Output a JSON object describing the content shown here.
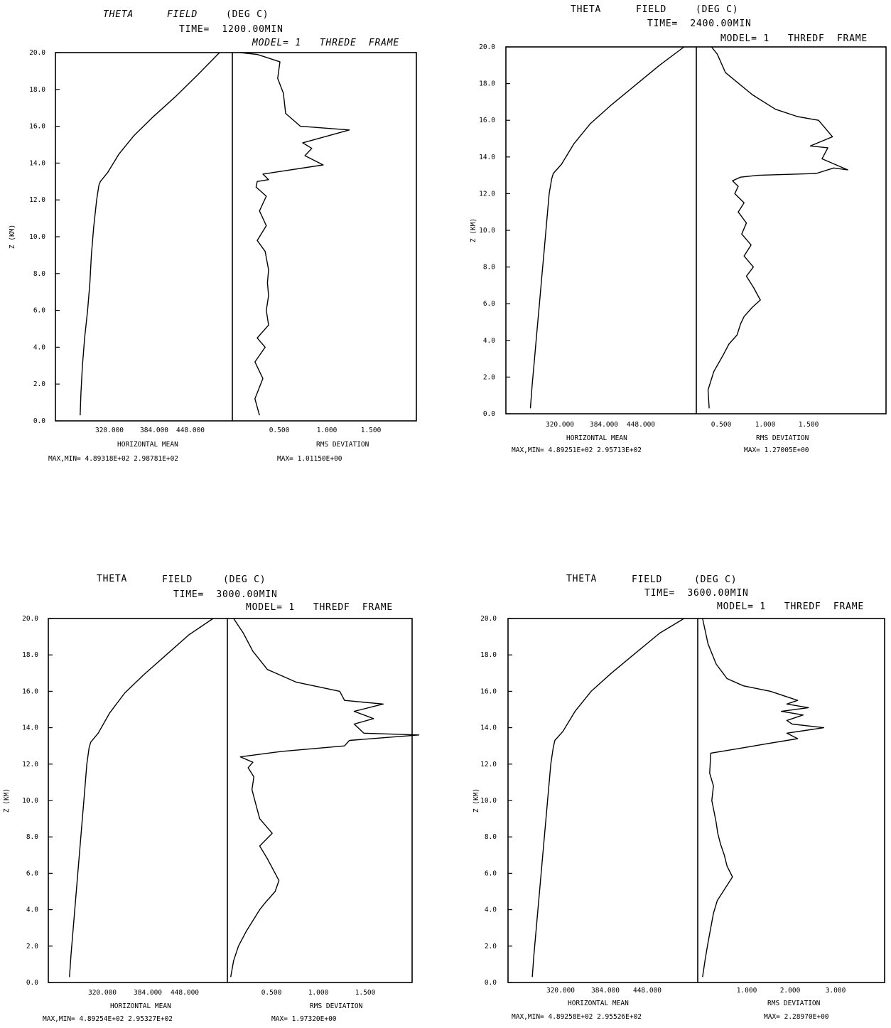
{
  "chart_data": [
    {
      "type": "line",
      "title": {
        "field": "THETA",
        "field_word": "FIELD",
        "unit": "(DEG C)"
      },
      "time_text": "TIME=  1200.00MIN",
      "model_text": "MODEL= 1   THREDE  FRAME",
      "ylabel": "Z (KM)",
      "ylim": [
        0,
        20
      ],
      "yticks": [
        "0.0",
        "2.0",
        "4.0",
        "6.0",
        "8.0",
        "10.0",
        "12.0",
        "14.0",
        "16.0",
        "18.0",
        "20.0"
      ],
      "mean_xticks": [
        "320.000",
        "384.000",
        "448.000"
      ],
      "mean_xlabel": "HORIZONTAL MEAN",
      "mean_stats": "MAX,MIN=  4.89318E+02  2.98781E+02",
      "rms_xticks": [
        "0.500",
        "1.000",
        "1.500"
      ],
      "rms_xlabel": "RMS DEVIATION",
      "rms_stats": "MAX=  1.01150E+00",
      "series": [
        {
          "panel": "mean",
          "xlim": [
            270,
            490
          ],
          "x": [
            303,
            304,
            306,
            309,
            313,
            316,
            318,
            321,
            325,
            328,
            330,
            340,
            355,
            375,
            400,
            430,
            460,
            489
          ],
          "y": [
            0.3,
            1.5,
            3,
            4.5,
            6,
            7.5,
            9,
            10.5,
            12,
            12.8,
            13.0,
            13.5,
            14.5,
            15.5,
            16.5,
            17.6,
            18.8,
            20
          ]
        },
        {
          "panel": "rms",
          "xlim": [
            0,
            1.6
          ],
          "x": [
            0.22,
            0.18,
            0.25,
            0.18,
            0.27,
            0.2,
            0.3,
            0.28,
            0.3,
            0.29,
            0.3,
            0.27,
            0.2,
            0.28,
            0.22,
            0.28,
            0.19,
            0.2,
            0.3,
            0.25,
            0.78,
            0.62,
            0.68,
            0.6,
            1.01,
            0.58,
            0.45,
            0.43,
            0.38,
            0.4,
            0.2,
            0.05
          ],
          "y": [
            0.3,
            1.2,
            2.3,
            3.2,
            4.0,
            4.5,
            5.2,
            6.0,
            6.8,
            7.5,
            8.2,
            9.2,
            9.8,
            10.6,
            11.4,
            12.2,
            12.7,
            13.0,
            13.1,
            13.4,
            13.9,
            14.4,
            14.8,
            15.1,
            15.8,
            16.0,
            16.7,
            17.8,
            18.6,
            19.5,
            19.9,
            20
          ]
        }
      ]
    },
    {
      "type": "line",
      "title": {
        "field": "THETA",
        "field_word": "FIELD",
        "unit": "(DEG C)"
      },
      "time_text": "TIME=  2400.00MIN",
      "model_text": "MODEL= 1   THREDF  FRAME",
      "ylabel": "Z (KM)",
      "ylim": [
        0,
        20
      ],
      "yticks": [
        "0.0",
        "2.0",
        "4.0",
        "6.0",
        "8.0",
        "10.0",
        "12.0",
        "14.0",
        "16.0",
        "18.0",
        "20.0"
      ],
      "mean_xticks": [
        "320.000",
        "384.000",
        "448.000"
      ],
      "mean_xlabel": "HORIZONTAL MEAN",
      "mean_stats": "MAX,MIN=  4.89251E+02  2.95713E+02",
      "rms_xticks": [
        "0.500",
        "1.000",
        "1.500"
      ],
      "rms_xlabel": "RMS DEVIATION",
      "rms_stats": "MAX=  1.27005E+00",
      "series": [
        {
          "panel": "mean",
          "xlim": [
            270,
            490
          ],
          "x": [
            300,
            302,
            305,
            308,
            311,
            314,
            317,
            320,
            323,
            326,
            328,
            338,
            353,
            373,
            398,
            428,
            458,
            488
          ],
          "y": [
            0.3,
            1.5,
            3,
            4.5,
            6,
            7.5,
            9,
            10.5,
            12,
            12.8,
            13.1,
            13.6,
            14.7,
            15.8,
            16.8,
            17.9,
            19.0,
            20
          ]
        },
        {
          "panel": "rms",
          "xlim": [
            0,
            1.6
          ],
          "x": [
            0.08,
            0.07,
            0.12,
            0.2,
            0.25,
            0.32,
            0.35,
            0.38,
            0.45,
            0.52,
            0.46,
            0.4,
            0.46,
            0.38,
            0.44,
            0.36,
            0.4,
            0.33,
            0.38,
            0.3,
            0.33,
            0.28,
            0.35,
            0.5,
            1.0,
            1.15,
            1.27,
            1.05,
            1.1,
            0.95,
            1.14,
            1.02,
            0.84,
            0.65,
            0.45,
            0.22,
            0.15,
            0.1
          ],
          "y": [
            0.3,
            1.3,
            2.3,
            3.2,
            3.8,
            4.3,
            4.9,
            5.3,
            5.8,
            6.2,
            6.9,
            7.5,
            8.0,
            8.6,
            9.2,
            9.8,
            10.4,
            11.0,
            11.5,
            12.0,
            12.4,
            12.7,
            12.9,
            13.0,
            13.1,
            13.4,
            13.3,
            13.9,
            14.5,
            14.6,
            15.1,
            16.0,
            16.2,
            16.6,
            17.4,
            18.6,
            19.6,
            20
          ]
        }
      ]
    },
    {
      "type": "line",
      "title": {
        "field": "THETA",
        "field_word": "FIELD",
        "unit": "(DEG C)"
      },
      "time_text": "TIME=  3000.00MIN",
      "model_text": "MODEL= 1   THREDF  FRAME",
      "ylabel": "Z (KM)",
      "ylim": [
        0,
        20
      ],
      "yticks": [
        "0.0",
        "2.0",
        "4.0",
        "6.0",
        "8.0",
        "10.0",
        "12.0",
        "14.0",
        "16.0",
        "18.0",
        "20.0"
      ],
      "mean_xticks": [
        "320.000",
        "384.000",
        "448.000"
      ],
      "mean_xlabel": "HORIZONTAL MEAN",
      "mean_stats": "MAX,MIN=  4.89254E+02  2.95327E+02",
      "rms_xticks": [
        "0.500",
        "1.000",
        "1.500"
      ],
      "rms_xlabel": "RMS DEVIATION",
      "rms_stats": "MAX=  1.97320E+00",
      "series": [
        {
          "panel": "mean",
          "xlim": [
            270,
            490
          ],
          "x": [
            298,
            300,
            303,
            306,
            309,
            312,
            315,
            318,
            321,
            324,
            326,
            336,
            351,
            371,
            396,
            426,
            456,
            488
          ],
          "y": [
            0.3,
            1.5,
            3,
            4.5,
            6,
            7.5,
            9,
            10.5,
            12,
            12.9,
            13.2,
            13.7,
            14.8,
            15.9,
            16.9,
            18.0,
            19.1,
            20
          ]
        },
        {
          "panel": "rms",
          "xlim": [
            0,
            1.9
          ],
          "x": [
            0.02,
            0.05,
            0.1,
            0.18,
            0.25,
            0.32,
            0.38,
            0.48,
            0.52,
            0.45,
            0.4,
            0.32,
            0.45,
            0.32,
            0.28,
            0.24,
            0.26,
            0.2,
            0.25,
            0.12,
            0.55,
            1.2,
            1.25,
            1.97,
            1.4,
            1.3,
            1.5,
            1.3,
            1.6,
            1.2,
            1.15,
            0.7,
            0.4,
            0.25,
            0.15,
            0.05
          ],
          "y": [
            0.3,
            1.2,
            2.0,
            2.8,
            3.4,
            4.0,
            4.4,
            5.0,
            5.6,
            6.3,
            6.8,
            7.5,
            8.2,
            9.0,
            9.8,
            10.6,
            11.3,
            11.8,
            12.1,
            12.4,
            12.7,
            13.0,
            13.3,
            13.6,
            13.7,
            14.2,
            14.5,
            14.9,
            15.3,
            15.5,
            16.0,
            16.5,
            17.2,
            18.2,
            19.2,
            20
          ]
        }
      ]
    },
    {
      "type": "line",
      "title": {
        "field": "THETA",
        "field_word": "FIELD",
        "unit": "(DEG C)"
      },
      "time_text": "TIME=  3600.00MIN",
      "model_text": "MODEL= 1   THREDF  FRAME",
      "ylabel": "Z (KM)",
      "ylim": [
        0,
        20
      ],
      "yticks": [
        "0.0",
        "2.0",
        "4.0",
        "6.0",
        "8.0",
        "10.0",
        "12.0",
        "14.0",
        "16.0",
        "18.0",
        "20.0"
      ],
      "mean_xticks": [
        "320.000",
        "384.000",
        "448.000"
      ],
      "mean_xlabel": "HORIZONTAL MEAN",
      "mean_stats": "MAX,MIN=  4.89258E+02  2.95526E+02",
      "rms_xticks": [
        "1.000",
        "2.000",
        "3.000"
      ],
      "rms_xlabel": "RMS DEVIATION",
      "rms_stats": "MAX=  2.28970E+00",
      "series": [
        {
          "panel": "mean",
          "xlim": [
            270,
            490
          ],
          "x": [
            300,
            302,
            305,
            308,
            311,
            314,
            317,
            320,
            323,
            326,
            328,
            338,
            353,
            373,
            398,
            428,
            458,
            488
          ],
          "y": [
            0.3,
            1.5,
            3,
            4.5,
            6,
            7.5,
            9,
            10.5,
            12,
            12.9,
            13.3,
            13.8,
            14.9,
            16.0,
            17.0,
            18.1,
            19.2,
            20
          ]
        },
        {
          "panel": "rms",
          "xlim": [
            0,
            3.4
          ],
          "x": [
            0.05,
            0.1,
            0.15,
            0.2,
            0.25,
            0.32,
            0.45,
            0.6,
            0.5,
            0.45,
            0.38,
            0.33,
            0.3,
            0.26,
            0.22,
            0.25,
            0.18,
            0.2,
            0.8,
            1.2,
            1.8,
            1.6,
            2.28,
            1.7,
            1.6,
            1.9,
            1.5,
            2.0,
            1.6,
            1.8,
            1.3,
            0.8,
            0.5,
            0.3,
            0.15,
            0.05
          ],
          "y": [
            0.3,
            1.3,
            2.2,
            3.0,
            3.8,
            4.5,
            5.1,
            5.8,
            6.4,
            7.0,
            7.6,
            8.2,
            8.8,
            9.4,
            10.0,
            10.8,
            11.5,
            12.6,
            12.9,
            13.1,
            13.4,
            13.7,
            14.0,
            14.2,
            14.4,
            14.7,
            14.9,
            15.1,
            15.3,
            15.5,
            16.0,
            16.3,
            16.7,
            17.5,
            18.6,
            20
          ]
        }
      ]
    }
  ]
}
